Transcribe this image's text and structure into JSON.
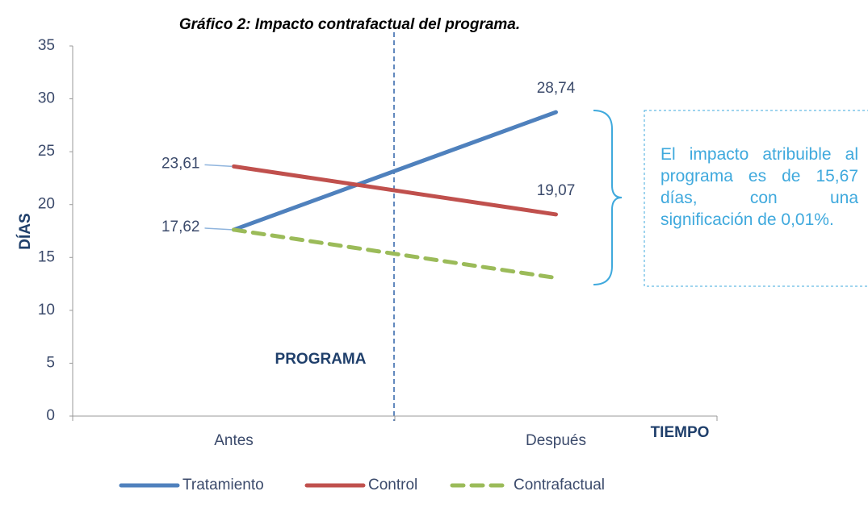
{
  "chart_data": {
    "type": "line",
    "title": "Gráfico 2: Impacto contrafactual del programa.",
    "xlabel": "TIEMPO",
    "ylabel": "DÍAS",
    "categories": [
      "Antes",
      "Después"
    ],
    "series": [
      {
        "name": "Tratamiento",
        "color": "#4f81bd",
        "dash": false,
        "values": [
          17.62,
          28.74
        ],
        "value_labels": [
          "17,62",
          "28,74"
        ]
      },
      {
        "name": "Control",
        "color": "#c0504d",
        "dash": false,
        "values": [
          23.61,
          19.07
        ],
        "value_labels": [
          "23,61",
          "19,07"
        ]
      },
      {
        "name": "Contrafactual",
        "color": "#9bbb59",
        "dash": true,
        "values": [
          17.62,
          13.07
        ]
      }
    ],
    "ylim": [
      0,
      35
    ],
    "yticks": [
      0,
      5,
      10,
      15,
      20,
      25,
      30,
      35
    ],
    "grid": false,
    "legend": "bottom",
    "annotation": "PROGRAMA",
    "note": "El impacto atribuible al programa es de 15,67 días, con una significación de 0,01%."
  }
}
